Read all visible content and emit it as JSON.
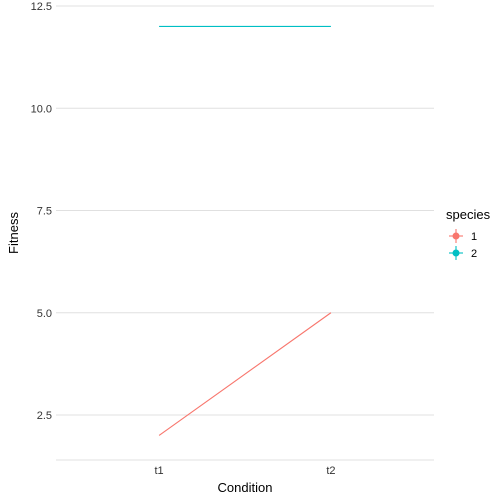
{
  "chart_data": {
    "type": "line",
    "title": "",
    "xlabel": "Condition",
    "ylabel": "Fitness",
    "categories": [
      "t1",
      "t2"
    ],
    "series": [
      {
        "name": "1",
        "values": [
          2,
          5
        ],
        "color": "#F8766D"
      },
      {
        "name": "2",
        "values": [
          12,
          12
        ],
        "color": "#00BFC4"
      }
    ],
    "ylim": [
      1.4,
      12.5
    ],
    "yticks": [
      2.5,
      5.0,
      7.5,
      10.0,
      12.5
    ],
    "ytick_labels": [
      "2.5",
      "5.0",
      "7.5",
      "10.0",
      "12.5"
    ],
    "grid": true,
    "legend": {
      "title": "species",
      "position": "right"
    }
  }
}
